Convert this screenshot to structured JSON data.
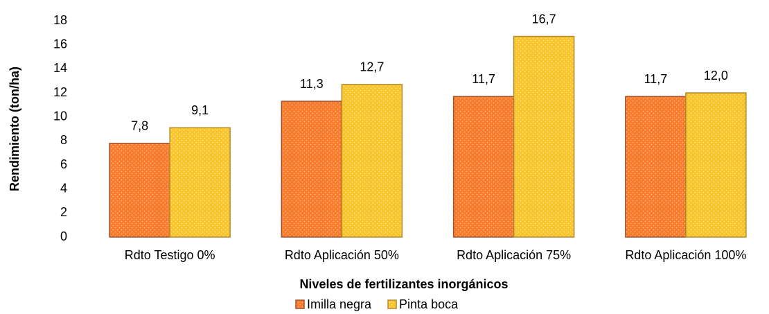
{
  "chart_data": {
    "type": "bar",
    "x_label": "Niveles de fertilizantes inorgánicos",
    "y_label": "Rendimiento (ton/ha)",
    "categories": [
      "Rdto Testigo 0%",
      "Rdto Aplicación 50%",
      "Rdto Aplicación 75%",
      "Rdto Aplicación 100%"
    ],
    "series": [
      {
        "name": "Imilla negra",
        "color": "#f97b2b",
        "border": "#a0522d",
        "values": [
          7.8,
          11.3,
          11.7,
          11.7
        ],
        "value_labels": [
          "7,8",
          "11,3",
          "11,7",
          "11,7"
        ]
      },
      {
        "name": "Pinta boca",
        "color": "#f8c62c",
        "border": "#b48a2a",
        "values": [
          9.1,
          12.7,
          16.7,
          12.0
        ],
        "value_labels": [
          "9,1",
          "12,7",
          "16,7",
          "12,0"
        ]
      }
    ],
    "ylim": [
      0,
      18
    ],
    "yticks": [
      0,
      2,
      4,
      6,
      8,
      10,
      12,
      14,
      16,
      18
    ],
    "grid": false,
    "legend": "bottom"
  }
}
